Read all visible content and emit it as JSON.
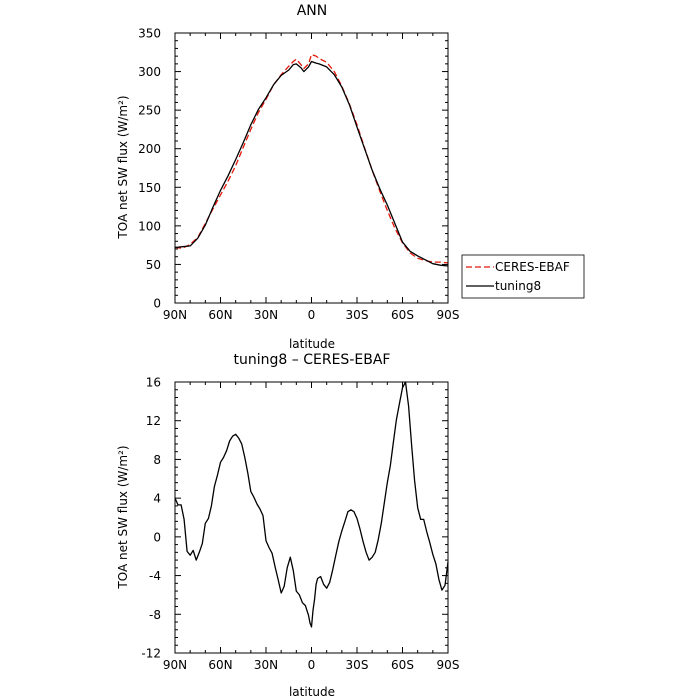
{
  "chart_data": [
    {
      "type": "line",
      "title": "ANN",
      "xlabel": "latitude",
      "ylabel": "TOA net SW flux (W/m²)",
      "xlim": [
        90,
        -90
      ],
      "ylim": [
        0,
        350
      ],
      "x_ticks": [
        "90N",
        "60N",
        "30N",
        "0",
        "30S",
        "60S",
        "90S"
      ],
      "x_tick_values": [
        90,
        60,
        30,
        0,
        -30,
        -60,
        -90
      ],
      "y_ticks": [
        0,
        50,
        100,
        150,
        200,
        250,
        300,
        350
      ],
      "legend": {
        "location": "right, outside plot",
        "entries": [
          "CERES-EBAF",
          "tuning8"
        ]
      },
      "series": [
        {
          "name": "CERES-EBAF",
          "color": "#e3170a",
          "dash": "dashed",
          "x": [
            90,
            85,
            80,
            75,
            70,
            65,
            60,
            55,
            50,
            45,
            40,
            35,
            30,
            25,
            20,
            15,
            12,
            10,
            7,
            5,
            2,
            0,
            -3,
            -5,
            -10,
            -15,
            -20,
            -25,
            -30,
            -35,
            -40,
            -45,
            -50,
            -55,
            -60,
            -65,
            -70,
            -75,
            -80,
            -85,
            -90
          ],
          "y": [
            72,
            71,
            76,
            85,
            103,
            122,
            140,
            158,
            178,
            202,
            225,
            247,
            264,
            283,
            296,
            307,
            313,
            316,
            309,
            304,
            310,
            322,
            320,
            317,
            312,
            300,
            281,
            258,
            231,
            201,
            172,
            145,
            120,
            97,
            78,
            65,
            58,
            55,
            53,
            53,
            52
          ]
        },
        {
          "name": "tuning8",
          "color": "#000000",
          "dash": "solid",
          "x": [
            90,
            85,
            80,
            75,
            70,
            65,
            60,
            55,
            50,
            45,
            40,
            35,
            30,
            25,
            20,
            15,
            12,
            10,
            7,
            5,
            2,
            0,
            -3,
            -5,
            -10,
            -15,
            -20,
            -25,
            -30,
            -35,
            -40,
            -45,
            -50,
            -55,
            -60,
            -65,
            -70,
            -75,
            -80,
            -85,
            -90
          ],
          "y": [
            72,
            73,
            74,
            84,
            101,
            124,
            146,
            165,
            186,
            208,
            231,
            251,
            266,
            283,
            295,
            302,
            309,
            310,
            305,
            300,
            306,
            313,
            311,
            310,
            306,
            296,
            280,
            257,
            228,
            200,
            172,
            148,
            127,
            103,
            79,
            67,
            61,
            56,
            51,
            49,
            48
          ]
        }
      ]
    },
    {
      "type": "line",
      "title": "tuning8 – CERES-EBAF",
      "xlabel": "latitude",
      "ylabel": "TOA net SW flux (W/m²)",
      "xlim": [
        90,
        -90
      ],
      "ylim": [
        -12,
        16
      ],
      "x_ticks": [
        "90N",
        "60N",
        "30N",
        "0",
        "30S",
        "60S",
        "90S"
      ],
      "x_tick_values": [
        90,
        60,
        30,
        0,
        -30,
        -60,
        -90
      ],
      "y_ticks": [
        -12,
        -8,
        -4,
        0,
        4,
        8,
        12,
        16
      ],
      "series": [
        {
          "name": "tuning8",
          "color": "#000000",
          "dash": "solid",
          "x": [
            90,
            88,
            86,
            84,
            82,
            80,
            78,
            76,
            74,
            72,
            70,
            68,
            66,
            64,
            62,
            60,
            58,
            56,
            54,
            52,
            50,
            48,
            46,
            44,
            42,
            40,
            38,
            36,
            34,
            32,
            30,
            28,
            26,
            24,
            22,
            20,
            18,
            16,
            14,
            12,
            10,
            8,
            6,
            4,
            2,
            1,
            0,
            -1,
            -2,
            -3,
            -4,
            -6,
            -8,
            -10,
            -12,
            -14,
            -16,
            -18,
            -20,
            -22,
            -24,
            -26,
            -28,
            -30,
            -32,
            -34,
            -36,
            -38,
            -40,
            -42,
            -44,
            -46,
            -48,
            -50,
            -52,
            -54,
            -56,
            -58,
            -60,
            -62,
            -64,
            -66,
            -68,
            -70,
            -72,
            -74,
            -76,
            -78,
            -80,
            -82,
            -84,
            -86,
            -88,
            -90
          ],
          "y": [
            4,
            3.3,
            3.3,
            1.8,
            -1.5,
            -1.9,
            -1.4,
            -2.4,
            -1.6,
            -0.7,
            1.4,
            1.9,
            3.2,
            5.2,
            6.4,
            7.7,
            8.2,
            8.9,
            9.9,
            10.4,
            10.6,
            10.2,
            9.6,
            8.2,
            6.6,
            4.7,
            4.1,
            3.4,
            2.9,
            2.2,
            -0.4,
            -1.1,
            -1.7,
            -3.1,
            -4.4,
            -5.8,
            -5.1,
            -3.2,
            -2.1,
            -3.5,
            -5.6,
            -6.0,
            -6.8,
            -7.1,
            -8.1,
            -8.9,
            -9.3,
            -7.6,
            -6.5,
            -4.9,
            -4.3,
            -4.1,
            -4.9,
            -5.3,
            -4.7,
            -3.4,
            -1.9,
            -0.5,
            0.6,
            1.6,
            2.6,
            2.8,
            2.6,
            1.9,
            0.8,
            -0.5,
            -1.6,
            -2.4,
            -2.1,
            -1.6,
            -0.3,
            1.4,
            3.5,
            5.6,
            7.4,
            9.8,
            12.1,
            13.8,
            15.4,
            16.0,
            13.5,
            9.5,
            5.8,
            3.0,
            1.8,
            1.8,
            0.5,
            -0.6,
            -1.8,
            -2.8,
            -4.4,
            -5.5,
            -5.0,
            -2.6
          ]
        }
      ]
    }
  ]
}
